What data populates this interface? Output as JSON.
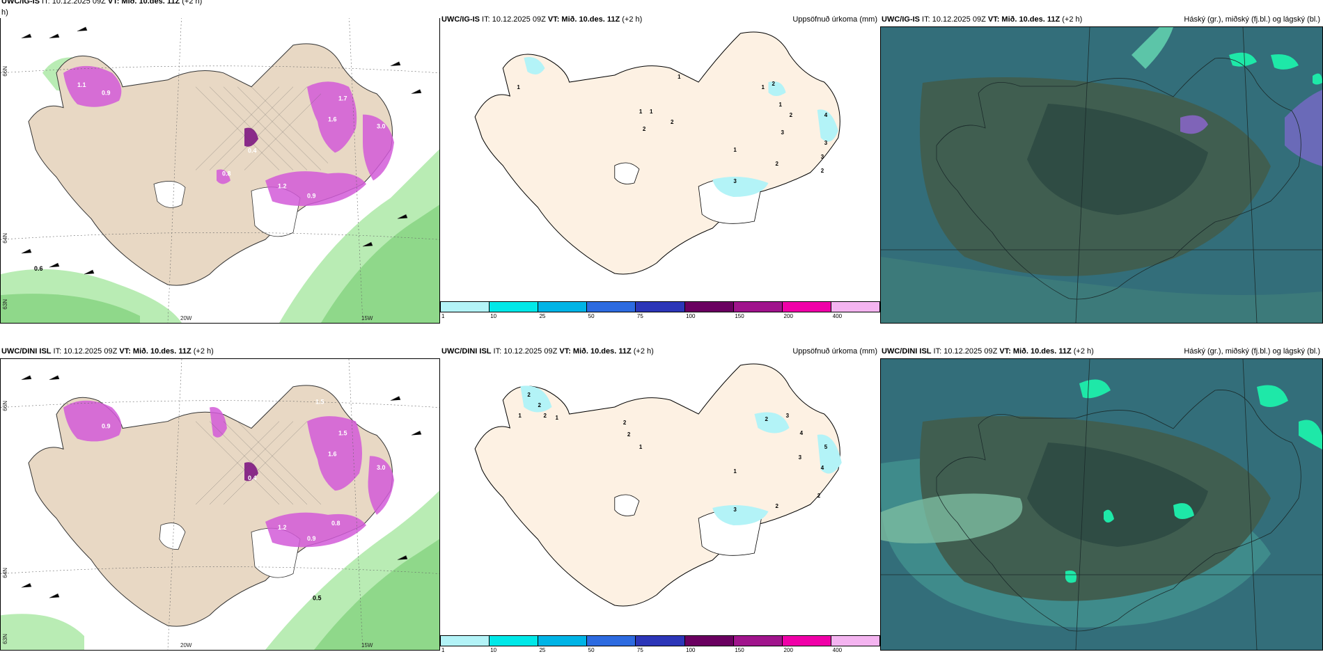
{
  "colors": {
    "land": "#e8d8c4",
    "land_light": "#fdf1e3",
    "precip_pink": "#d25ad8",
    "wind_green": "#b9ecb4",
    "cloud_dark": "#2c5a62",
    "cloud_teal": "#3f8b8b",
    "cloud_bright": "#1ee8a8",
    "cyan_precip": "#b3f3f7"
  },
  "rows": [
    {
      "model": "UWC/IG-IS",
      "run_info": " IT: 10.12.2025 09Z ",
      "valid_label": "VT: Mið. 10.des. 11Z",
      "lead": " (+2 h)",
      "left_hdr_wrap": "h)",
      "left_values": [
        "0.6",
        "1.1",
        "0.9",
        "1.6",
        "0.4",
        "0.8",
        "1.2",
        "0.9",
        "3.0",
        "1.7"
      ],
      "mid_title": "Uppsöfnuð úrkoma (mm)",
      "mid_values": [
        "1",
        "1",
        "2",
        "1",
        "1",
        "2",
        "1",
        "2",
        "1",
        "2",
        "3",
        "4",
        "3",
        "3",
        "2",
        "2",
        "1",
        "3"
      ],
      "right_title": "Háský (gr.), miðský (fj.bl.) og lágský (bl.)",
      "axes": {
        "lon_a": "20W",
        "lon_b": "15W",
        "lat_a": "66N",
        "lat_b": "64N",
        "lat_c": "63N"
      }
    },
    {
      "model": "UWC/DINI ISL",
      "run_info": " IT: 10.12.2025 09Z ",
      "valid_label": "VT: Mið. 10.des. 11Z",
      "lead": " (+2 h)",
      "left_values": [
        "0.5",
        "1.5",
        "0.9",
        "1.6",
        "0.4",
        "0.8",
        "1.2",
        "0.9",
        "3.0",
        "1.5"
      ],
      "mid_title": "Uppsöfnuð úrkoma (mm)",
      "mid_values": [
        "2",
        "1",
        "2",
        "2",
        "1",
        "2",
        "2",
        "1",
        "1",
        "2",
        "3",
        "4",
        "3",
        "5",
        "4",
        "2",
        "2",
        "3"
      ],
      "right_title": "Háský (gr.), miðský (fj.bl.) og lágský (bl.)",
      "axes": {
        "lon_a": "20W",
        "lon_b": "15W",
        "lat_a": "66N",
        "lat_b": "64N",
        "lat_c": "63N"
      }
    }
  ],
  "colorbar": {
    "colors": [
      "#b3f3f7",
      "#00e8e8",
      "#00b4e6",
      "#2d6be0",
      "#2c36b8",
      "#6a0060",
      "#a0148c",
      "#f000a8",
      "#f4b4f0"
    ],
    "ticks": [
      "1",
      "10",
      "25",
      "50",
      "75",
      "100",
      "150",
      "200",
      "400"
    ]
  }
}
